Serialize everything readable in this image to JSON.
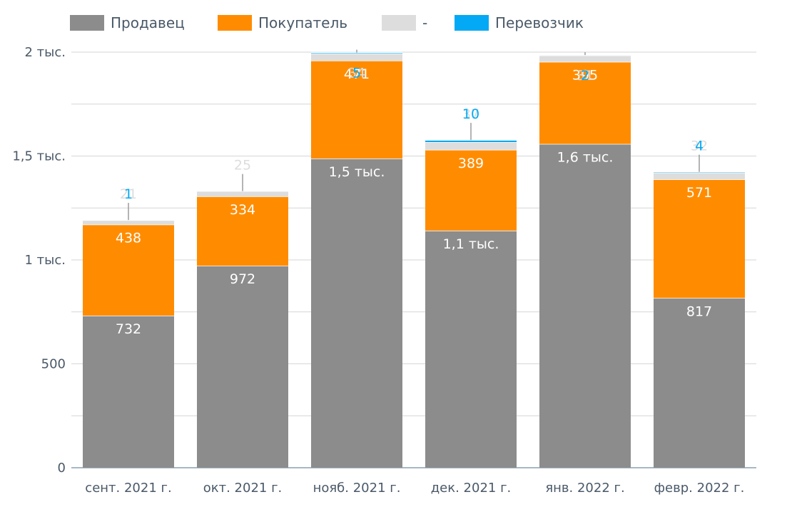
{
  "chart_data": {
    "type": "bar",
    "stacked": true,
    "legend_position": "top",
    "grid": true,
    "ylim": [
      0,
      2000
    ],
    "y_ticks": [
      {
        "value": 0,
        "label": "0"
      },
      {
        "value": 500,
        "label": "500"
      },
      {
        "value": 1000,
        "label": "1 тыс."
      },
      {
        "value": 1500,
        "label": "1,5 тыс."
      },
      {
        "value": 2000,
        "label": "2 тыс."
      }
    ],
    "categories": [
      "сент. 2021 г.",
      "окт. 2021 г.",
      "нояб. 2021 г.",
      "дек. 2021 г.",
      "янв. 2022 г.",
      "февр. 2022 г."
    ],
    "series": [
      {
        "name": "Продавец",
        "color": "#8c8c8c",
        "label_color": "#ffffff",
        "values": [
          732,
          972,
          1488,
          1141,
          1558,
          817
        ],
        "labels": [
          "732",
          "972",
          "1,5 тыс.",
          "1,1 тыс.",
          "1,6 тыс.",
          "817"
        ]
      },
      {
        "name": "Покупатель",
        "color": "#ff8c00",
        "label_color": "#ffffff",
        "values": [
          438,
          334,
          471,
          389,
          395,
          571
        ],
        "labels": [
          "438",
          "334",
          "471",
          "389",
          "395",
          "571"
        ]
      },
      {
        "name": "-",
        "color": "#dddddd",
        "label_color": "#dddddd",
        "values": [
          21,
          25,
          34,
          37,
          31,
          32
        ],
        "labels": [
          "21",
          "25",
          "34",
          "37",
          "31",
          "32"
        ]
      },
      {
        "name": "Перевозчик",
        "color": "#03a9f4",
        "label_color": "#03a9f4",
        "values": [
          1,
          0,
          5,
          10,
          2,
          4
        ],
        "labels": [
          "1",
          "",
          "5",
          "10",
          "2",
          "4"
        ]
      }
    ]
  }
}
